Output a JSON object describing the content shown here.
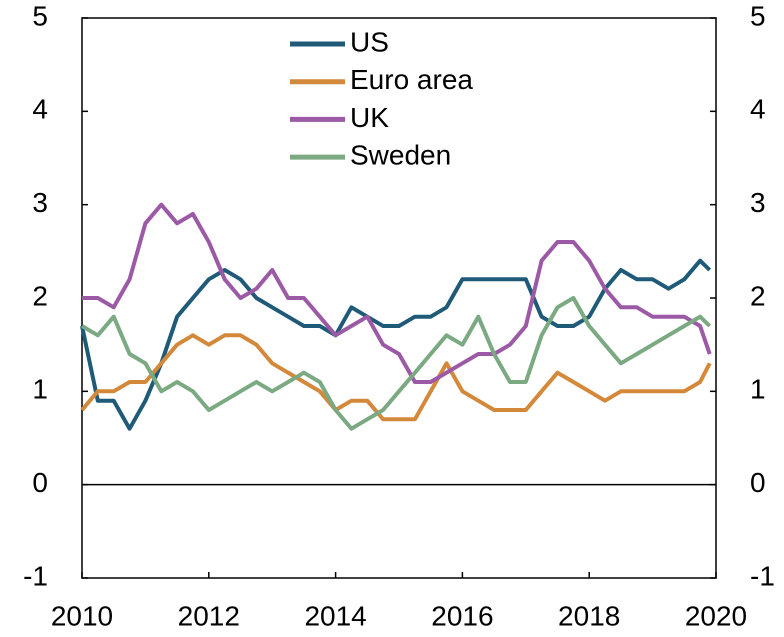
{
  "chart_data": {
    "type": "line",
    "x": [
      2010,
      2010.25,
      2010.5,
      2010.75,
      2011,
      2011.25,
      2011.5,
      2011.75,
      2012,
      2012.25,
      2012.5,
      2012.75,
      2013,
      2013.25,
      2013.5,
      2013.75,
      2014,
      2014.25,
      2014.5,
      2014.75,
      2015,
      2015.25,
      2015.5,
      2015.75,
      2016,
      2016.25,
      2016.5,
      2016.75,
      2017,
      2017.25,
      2017.5,
      2017.75,
      2018,
      2018.25,
      2018.5,
      2018.75,
      2019,
      2019.25,
      2019.5,
      2019.75,
      2019.9
    ],
    "series": [
      {
        "name": "US",
        "color": "#1f5a78",
        "values": [
          1.7,
          0.9,
          0.9,
          0.6,
          0.9,
          1.3,
          1.8,
          2.0,
          2.2,
          2.3,
          2.2,
          2.0,
          1.9,
          1.8,
          1.7,
          1.7,
          1.6,
          1.9,
          1.8,
          1.7,
          1.7,
          1.8,
          1.8,
          1.9,
          2.2,
          2.2,
          2.2,
          2.2,
          2.2,
          1.8,
          1.7,
          1.7,
          1.8,
          2.1,
          2.3,
          2.2,
          2.2,
          2.1,
          2.2,
          2.4,
          2.3
        ]
      },
      {
        "name": "Euro area",
        "color": "#d4883a",
        "values": [
          0.8,
          1.0,
          1.0,
          1.1,
          1.1,
          1.3,
          1.5,
          1.6,
          1.5,
          1.6,
          1.6,
          1.5,
          1.3,
          1.2,
          1.1,
          1.0,
          0.8,
          0.9,
          0.9,
          0.7,
          0.7,
          0.7,
          1.0,
          1.3,
          1.0,
          0.9,
          0.8,
          0.8,
          0.8,
          1.0,
          1.2,
          1.1,
          1.0,
          0.9,
          1.0,
          1.0,
          1.0,
          1.0,
          1.0,
          1.1,
          1.3
        ]
      },
      {
        "name": "UK",
        "color": "#9b59a6",
        "values": [
          2.0,
          2.0,
          1.9,
          2.2,
          2.8,
          3.0,
          2.8,
          2.9,
          2.6,
          2.2,
          2.0,
          2.1,
          2.3,
          2.0,
          2.0,
          1.8,
          1.6,
          1.7,
          1.8,
          1.5,
          1.4,
          1.1,
          1.1,
          1.2,
          1.3,
          1.4,
          1.4,
          1.5,
          1.7,
          2.4,
          2.6,
          2.6,
          2.4,
          2.1,
          1.9,
          1.9,
          1.8,
          1.8,
          1.8,
          1.7,
          1.4
        ]
      },
      {
        "name": "Sweden",
        "color": "#7aa982",
        "values": [
          1.7,
          1.6,
          1.8,
          1.4,
          1.3,
          1.0,
          1.1,
          1.0,
          0.8,
          0.9,
          1.0,
          1.1,
          1.0,
          1.1,
          1.2,
          1.1,
          0.8,
          0.6,
          0.7,
          0.8,
          1.0,
          1.2,
          1.4,
          1.6,
          1.5,
          1.8,
          1.4,
          1.1,
          1.1,
          1.6,
          1.9,
          2.0,
          1.7,
          1.5,
          1.3,
          1.4,
          1.5,
          1.6,
          1.7,
          1.8,
          1.7
        ]
      }
    ],
    "xlim": [
      2010,
      2020
    ],
    "xticks": [
      2010,
      2012,
      2014,
      2016,
      2018,
      2020
    ],
    "ylim": [
      -1,
      5
    ],
    "yticks": [
      -1,
      0,
      1,
      2,
      3,
      4,
      5
    ],
    "y2lim": [
      -1,
      5
    ],
    "y2ticks": [
      -1,
      0,
      1,
      2,
      3,
      4,
      5
    ],
    "legend": "upper center",
    "grid": false
  }
}
